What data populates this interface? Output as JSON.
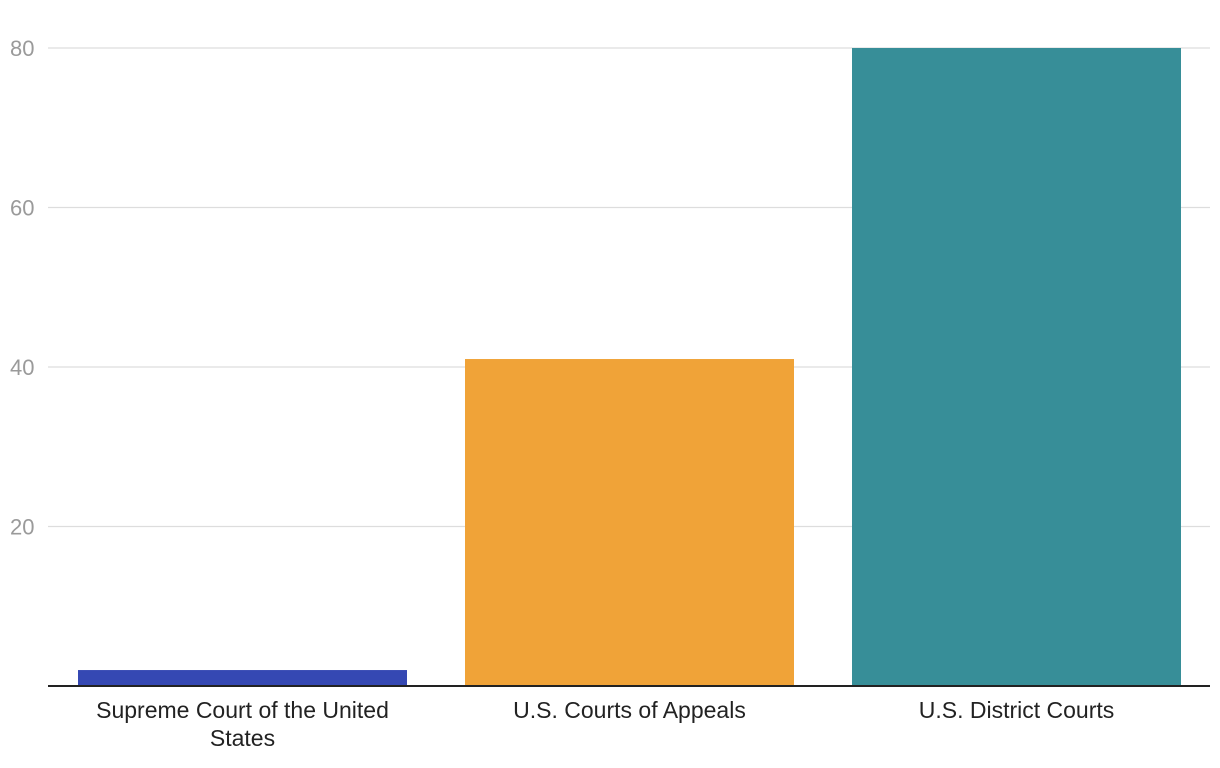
{
  "chart_data": {
    "type": "bar",
    "title": "",
    "xlabel": "",
    "ylabel": "",
    "categories": [
      "Supreme Court of the United States",
      "U.S. Courts of Appeals",
      "U.S. District Courts"
    ],
    "category_label_lines": [
      [
        "Supreme Court of the United",
        "States"
      ],
      [
        "U.S. Courts of Appeals"
      ],
      [
        "U.S. District Courts"
      ]
    ],
    "values": [
      2,
      41,
      80
    ],
    "colors": [
      "#3548b3",
      "#f0a338",
      "#378e98"
    ],
    "ylim": [
      0,
      80
    ],
    "yticks": [
      20,
      40,
      60,
      80
    ],
    "ytick_labels": [
      "20",
      "40",
      "60",
      "80"
    ],
    "grid": true,
    "legend": "none"
  }
}
